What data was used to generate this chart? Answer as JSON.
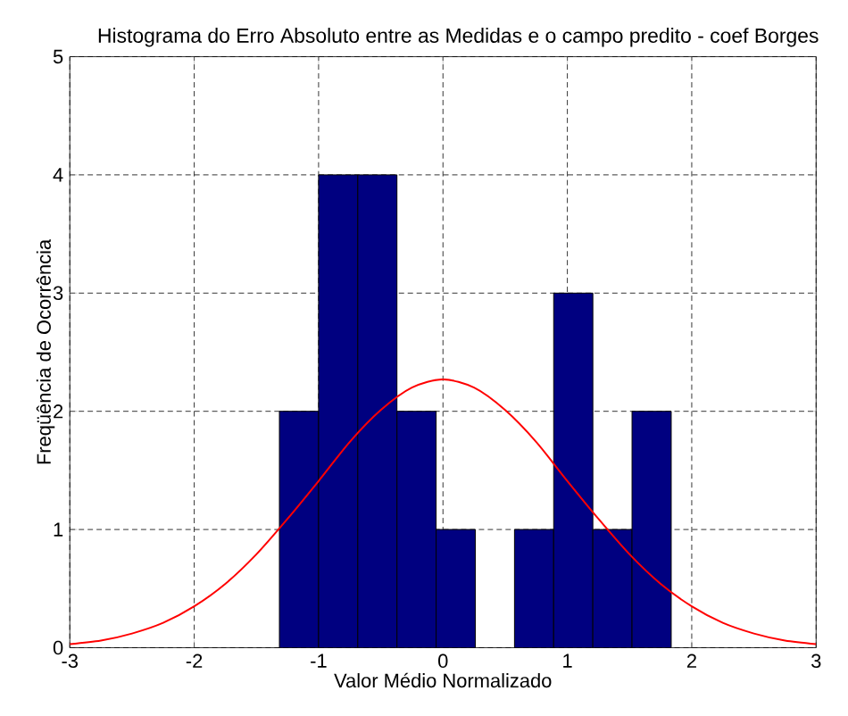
{
  "chart_data": {
    "type": "histogram",
    "title": "Histograma do Erro Absoluto entre as Medidas e o campo predito - coef Borges",
    "xlabel": "Valor Médio Normalizado",
    "ylabel": "Freqüência de Ocorrência",
    "series": [
      {
        "color": "#000080",
        "bins": [
          -1.315,
          -1.0,
          -0.685,
          -0.37,
          -0.055,
          0.26,
          0.575,
          0.89,
          1.205,
          1.52,
          1.835
        ],
        "values": [
          2,
          4,
          4,
          2,
          1,
          0,
          1,
          3,
          1,
          2
        ]
      },
      {
        "type": "line",
        "color": "#ff0000",
        "x": [
          -3,
          -2.75,
          -2.5,
          -2.25,
          -2,
          -1.75,
          -1.5,
          -1.25,
          -1,
          -0.75,
          -0.5,
          -0.25,
          0,
          0.25,
          0.5,
          0.75,
          1,
          1.25,
          1.5,
          1.75,
          2,
          2.25,
          2.5,
          2.75,
          3
        ],
        "values": [
          0.03,
          0.06,
          0.12,
          0.21,
          0.35,
          0.54,
          0.79,
          1.09,
          1.41,
          1.74,
          2.01,
          2.2,
          2.27,
          2.2,
          2.01,
          1.74,
          1.41,
          1.09,
          0.79,
          0.54,
          0.35,
          0.21,
          0.12,
          0.06,
          0.03
        ]
      }
    ],
    "xlim": [
      -3,
      3
    ],
    "ylim": [
      0,
      5
    ],
    "xticks": [
      -3,
      -2,
      -1,
      0,
      1,
      2,
      3
    ],
    "yticks": [
      0,
      1,
      2,
      3,
      4,
      5
    ],
    "grid": true,
    "line_style": "solid"
  }
}
